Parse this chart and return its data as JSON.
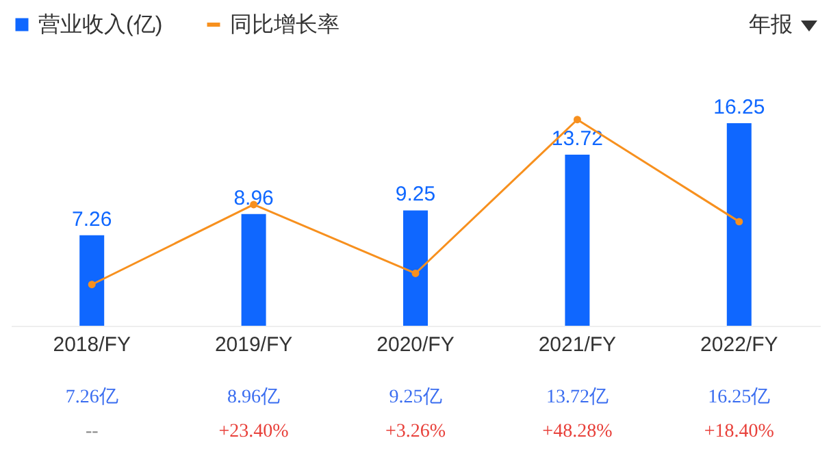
{
  "chart_data": {
    "type": "bar",
    "categories": [
      "2018/FY",
      "2019/FY",
      "2020/FY",
      "2021/FY",
      "2022/FY"
    ],
    "series": [
      {
        "name": "营业收入(亿)",
        "color": "#0f67ff",
        "values": [
          7.26,
          8.96,
          9.25,
          13.72,
          16.25
        ]
      },
      {
        "name": "同比增长率",
        "type": "line",
        "axis": "y2",
        "color": "#f7901e",
        "values": [
          0,
          23.4,
          3.26,
          48.28,
          18.4
        ],
        "value_labels": [
          "--",
          "+23.40%",
          "+3.26%",
          "+48.28%",
          "+18.40%"
        ]
      }
    ],
    "data_labels": true,
    "legend": "top left",
    "marker": "circle",
    "line_style": "solid",
    "annotations": [
      "年报",
      "7.26亿",
      "8.96亿",
      "9.25亿",
      "13.72亿",
      "16.25亿"
    ]
  }
}
